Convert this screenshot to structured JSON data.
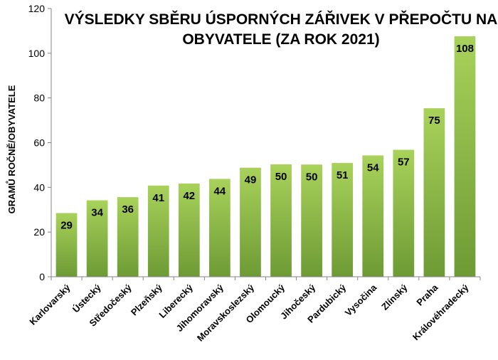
{
  "chart_data": {
    "type": "bar",
    "title_lines": [
      "VÝSLEDKY SBĚRU ÚSPORNÝCH ZÁŘIVEK V PŘEPOČTU NA",
      "OBYVATELE (ZA ROK 2021)"
    ],
    "ylabel": "GRAMŮ ROČNĚ/OBYVATELE",
    "xlabel": "",
    "ylim": [
      0,
      120
    ],
    "yticks": [
      0,
      20,
      40,
      60,
      80,
      100,
      120
    ],
    "categories": [
      "Karlovarský",
      "Ústecký",
      "Středočeský",
      "Plzeňský",
      "Liberecký",
      "Jihomoravský",
      "Moravskoslezský",
      "Olomoucký",
      "Jihočeský",
      "Pardubický",
      "Vysočina",
      "Zlínský",
      "Praha",
      "Královéhradecký"
    ],
    "values": [
      28.5,
      34.2,
      35.6,
      40.8,
      41.7,
      43.8,
      48.8,
      50.3,
      50.2,
      50.9,
      54.3,
      56.8,
      75.4,
      107.6
    ],
    "data_labels": [
      "29",
      "34",
      "36",
      "41",
      "42",
      "44",
      "49",
      "50",
      "50",
      "51",
      "54",
      "57",
      "75",
      "108"
    ],
    "colors": {
      "bar_top": "#a8d25a",
      "bar_bottom": "#6e9a35",
      "axis": "#868686"
    },
    "grid": false,
    "legend": "none"
  }
}
